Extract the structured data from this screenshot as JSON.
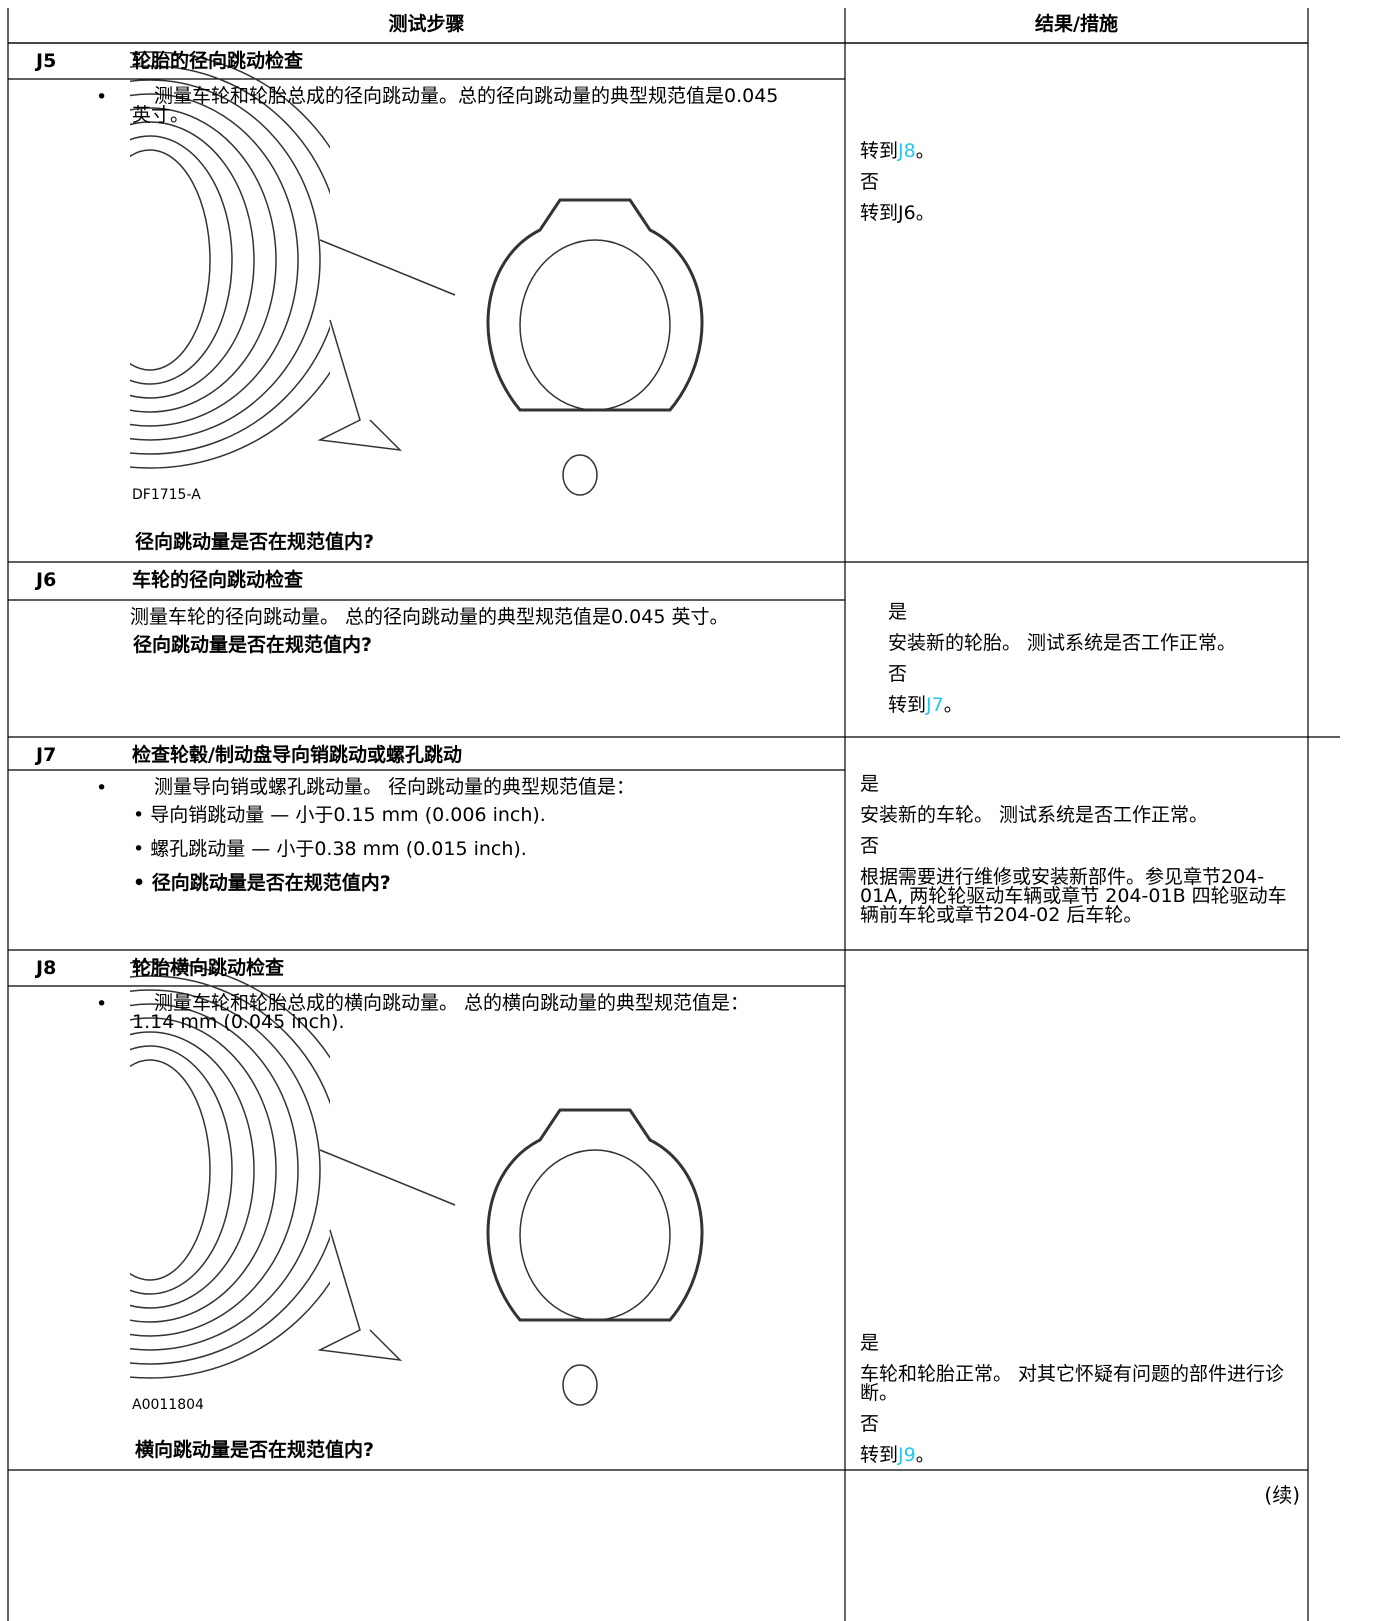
{
  "table": {
    "headers": [
      "测试步骤",
      "结果/措施"
    ],
    "steps": [
      {
        "id": "J5",
        "title": "轮胎的径向跳动检查",
        "bullet": "•",
        "text": "测量车轮和轮胎总成的径向跳动量。总的径向跳动量的典型规范值是0.045 英寸。",
        "figure_label": "DF1715-A",
        "question": "径向跳动量是否在规范值内?",
        "results": [
          {
            "text": "转到",
            "link": "J8",
            "after": "。"
          },
          {
            "text": "否"
          },
          {
            "text": "转到J6。"
          }
        ]
      },
      {
        "id": "J6",
        "title": "车轮的径向跳动检查",
        "text": "测量车轮的径向跳动量。 总的径向跳动量的典型规范值是0.045 英寸。",
        "question": "径向跳动量是否在规范值内?",
        "results": [
          {
            "text": "是"
          },
          {
            "text": "安装新的轮胎。 测试系统是否工作正常。"
          },
          {
            "text": "否"
          },
          {
            "text": "转到",
            "link": "J7",
            "after": "。"
          }
        ]
      },
      {
        "id": "J7",
        "title": "检查轮毂/制动盘导向销跳动或螺孔跳动",
        "bullet": "•",
        "text": "测量导向销或螺孔跳动量。 径向跳动量的典型规范值是：",
        "items": [
          "• 导向销跳动量 — 小于0.15 mm (0.006 inch).",
          "• 螺孔跳动量 — 小于0.38 mm (0.015 inch)."
        ],
        "question": "• 径向跳动量是否在规范值内?",
        "results": [
          {
            "text": "是"
          },
          {
            "text": "安装新的车轮。 测试系统是否工作正常。"
          },
          {
            "text": "否"
          },
          {
            "text": "根据需要进行维修或安装新部件。参见章节204-01A, 两轮轮驱动车辆或章节 204-01B 四轮驱动车辆前车轮或章节204-02 后车轮。"
          }
        ]
      },
      {
        "id": "J8",
        "title": "轮胎横向跳动检查",
        "bullet": "•",
        "text": "测量车轮和轮胎总成的横向跳动量。 总的横向跳动量的典型规范值是： 1.14 mm (0.045 inch).",
        "figure_label": "A0011804",
        "question": "横向跳动量是否在规范值内?",
        "results": [
          {
            "text": "是"
          },
          {
            "text": "车轮和轮胎正常。 对其它怀疑有问题的部件进行诊断。"
          },
          {
            "text": "否"
          },
          {
            "text": "转到",
            "link": "J9",
            "after": "。"
          }
        ]
      }
    ]
  },
  "footer": {
    "continued": "(续)"
  }
}
